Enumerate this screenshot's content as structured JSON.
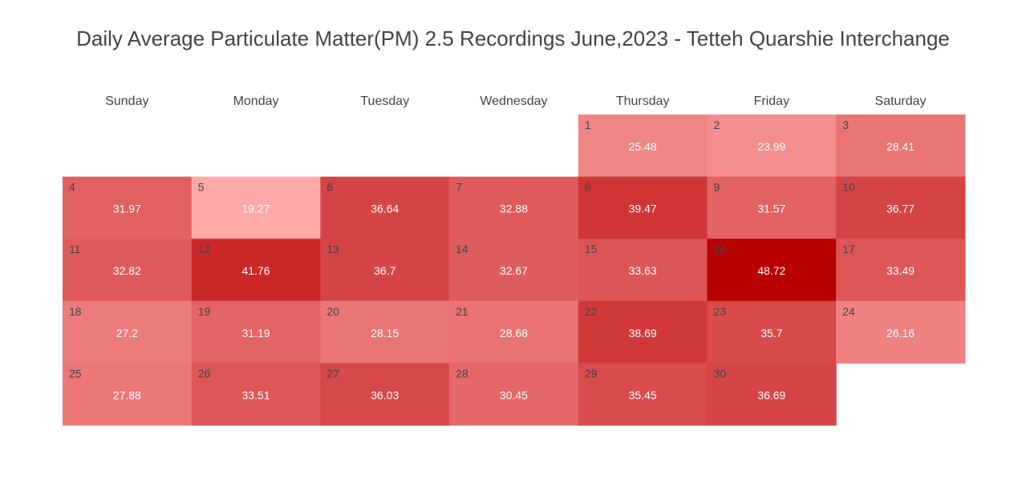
{
  "chart_data": {
    "type": "heatmap",
    "title": "Daily Average Particulate Matter(PM) 2.5 Recordings June,2023 - Tetteh Quarshie Interchange",
    "weekdays": [
      "Sunday",
      "Monday",
      "Tuesday",
      "Wednesday",
      "Thursday",
      "Friday",
      "Saturday"
    ],
    "first_weekday_index": 4,
    "days": [
      1,
      2,
      3,
      4,
      5,
      6,
      7,
      8,
      9,
      10,
      11,
      12,
      13,
      14,
      15,
      16,
      17,
      18,
      19,
      20,
      21,
      22,
      23,
      24,
      25,
      26,
      27,
      28,
      29,
      30
    ],
    "values": [
      25.48,
      23.99,
      28.41,
      31.97,
      19.27,
      36.64,
      32.88,
      39.47,
      31.57,
      36.77,
      32.82,
      41.76,
      36.7,
      32.67,
      33.63,
      48.72,
      33.49,
      27.2,
      31.19,
      28.15,
      28.68,
      38.69,
      35.7,
      26.16,
      27.88,
      33.51,
      36.03,
      30.45,
      35.45,
      36.69
    ],
    "value_labels": [
      "25.48",
      "23.99",
      "28.41",
      "31.97",
      "19.27",
      "36.64",
      "32.88",
      "39.47",
      "31.57",
      "36.77",
      "32.82",
      "41.76",
      "36.7",
      "32.67",
      "33.63",
      "48.72",
      "33.49",
      "27.2",
      "31.19",
      "28.15",
      "28.68",
      "38.69",
      "35.7",
      "26.16",
      "27.88",
      "33.51",
      "36.03",
      "30.45",
      "35.45",
      "36.69"
    ],
    "color_scale": {
      "low": "#ffa8a8",
      "high": "#b90000",
      "min": 19.27,
      "max": 48.72
    },
    "grid": false,
    "legend": "none"
  }
}
